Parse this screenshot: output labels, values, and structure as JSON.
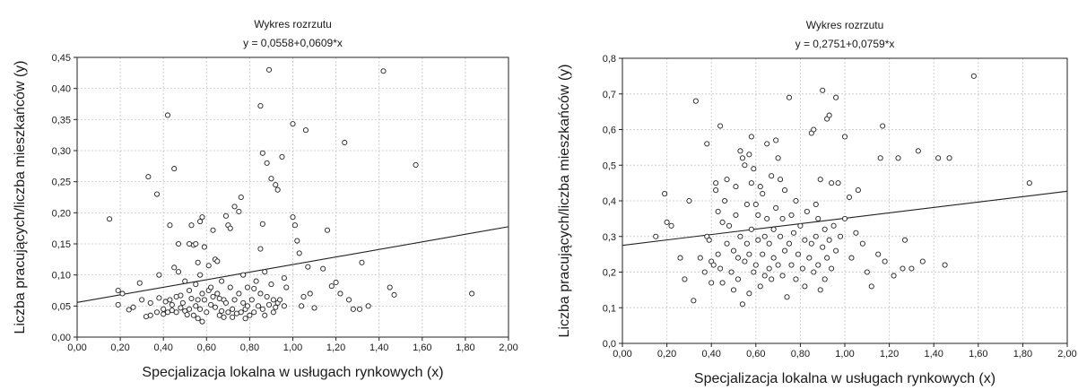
{
  "chart_data": [
    {
      "type": "scatter",
      "title": "Wykres rozrzutu",
      "subtitle": "y = 0,0558+0,0609*x",
      "xlabel": "Specjalizacja lokalna w usługach rynkowych (x)",
      "ylabel": "Liczba pracujących/liczba mieszkańców (y)",
      "xlim": [
        0,
        2
      ],
      "ylim": [
        0,
        0.45
      ],
      "x_ticks": [
        "0,00",
        "0,20",
        "0,40",
        "0,60",
        "0,80",
        "1,00",
        "1,20",
        "1,40",
        "1,60",
        "1,80",
        "2,00"
      ],
      "y_ticks": [
        "0,00",
        "0,05",
        "0,10",
        "0,15",
        "0,20",
        "0,25",
        "0,30",
        "0,35",
        "0,40",
        "0,45"
      ],
      "grid": true,
      "regression": {
        "intercept": 0.0558,
        "slope": 0.0609
      },
      "points": [
        [
          0.15,
          0.19
        ],
        [
          0.19,
          0.075
        ],
        [
          0.19,
          0.052
        ],
        [
          0.21,
          0.07
        ],
        [
          0.24,
          0.044
        ],
        [
          0.26,
          0.048
        ],
        [
          0.29,
          0.087
        ],
        [
          0.3,
          0.06
        ],
        [
          0.32,
          0.033
        ],
        [
          0.33,
          0.258
        ],
        [
          0.34,
          0.055
        ],
        [
          0.34,
          0.035
        ],
        [
          0.37,
          0.23
        ],
        [
          0.37,
          0.04
        ],
        [
          0.38,
          0.1
        ],
        [
          0.38,
          0.063
        ],
        [
          0.4,
          0.045
        ],
        [
          0.4,
          0.037
        ],
        [
          0.41,
          0.057
        ],
        [
          0.42,
          0.357
        ],
        [
          0.42,
          0.04
        ],
        [
          0.43,
          0.18
        ],
        [
          0.43,
          0.06
        ],
        [
          0.44,
          0.052
        ],
        [
          0.44,
          0.043
        ],
        [
          0.45,
          0.271
        ],
        [
          0.45,
          0.112
        ],
        [
          0.46,
          0.065
        ],
        [
          0.46,
          0.04
        ],
        [
          0.47,
          0.15
        ],
        [
          0.47,
          0.105
        ],
        [
          0.48,
          0.067
        ],
        [
          0.48,
          0.047
        ],
        [
          0.49,
          0.055
        ],
        [
          0.5,
          0.09
        ],
        [
          0.5,
          0.042
        ],
        [
          0.51,
          0.036
        ],
        [
          0.52,
          0.15
        ],
        [
          0.52,
          0.075
        ],
        [
          0.52,
          0.045
        ],
        [
          0.53,
          0.18
        ],
        [
          0.53,
          0.062
        ],
        [
          0.54,
          0.148
        ],
        [
          0.54,
          0.035
        ],
        [
          0.55,
          0.15
        ],
        [
          0.55,
          0.085
        ],
        [
          0.55,
          0.05
        ],
        [
          0.56,
          0.12
        ],
        [
          0.56,
          0.06
        ],
        [
          0.56,
          0.03
        ],
        [
          0.57,
          0.186
        ],
        [
          0.57,
          0.1
        ],
        [
          0.57,
          0.045
        ],
        [
          0.58,
          0.193
        ],
        [
          0.58,
          0.07
        ],
        [
          0.58,
          0.025
        ],
        [
          0.59,
          0.145
        ],
        [
          0.59,
          0.06
        ],
        [
          0.6,
          0.04
        ],
        [
          0.61,
          0.075
        ],
        [
          0.61,
          0.115
        ],
        [
          0.62,
          0.052
        ],
        [
          0.62,
          0.08
        ],
        [
          0.63,
          0.172
        ],
        [
          0.63,
          0.065
        ],
        [
          0.64,
          0.125
        ],
        [
          0.64,
          0.048
        ],
        [
          0.65,
          0.122
        ],
        [
          0.65,
          0.07
        ],
        [
          0.66,
          0.035
        ],
        [
          0.66,
          0.062
        ],
        [
          0.67,
          0.09
        ],
        [
          0.67,
          0.042
        ],
        [
          0.68,
          0.032
        ],
        [
          0.68,
          0.06
        ],
        [
          0.69,
          0.195
        ],
        [
          0.69,
          0.055
        ],
        [
          0.7,
          0.18
        ],
        [
          0.7,
          0.04
        ],
        [
          0.71,
          0.175
        ],
        [
          0.71,
          0.08
        ],
        [
          0.72,
          0.032
        ],
        [
          0.72,
          0.045
        ],
        [
          0.73,
          0.21
        ],
        [
          0.73,
          0.06
        ],
        [
          0.74,
          0.038
        ],
        [
          0.75,
          0.202
        ],
        [
          0.75,
          0.07
        ],
        [
          0.76,
          0.225
        ],
        [
          0.76,
          0.04
        ],
        [
          0.77,
          0.1
        ],
        [
          0.77,
          0.055
        ],
        [
          0.78,
          0.045
        ],
        [
          0.78,
          0.03
        ],
        [
          0.79,
          0.08
        ],
        [
          0.79,
          0.05
        ],
        [
          0.8,
          0.035
        ],
        [
          0.81,
          0.06
        ],
        [
          0.82,
          0.078
        ],
        [
          0.82,
          0.04
        ],
        [
          0.83,
          0.09
        ],
        [
          0.84,
          0.05
        ],
        [
          0.85,
          0.372
        ],
        [
          0.85,
          0.142
        ],
        [
          0.85,
          0.07
        ],
        [
          0.86,
          0.296
        ],
        [
          0.86,
          0.182
        ],
        [
          0.86,
          0.045
        ],
        [
          0.87,
          0.105
        ],
        [
          0.87,
          0.035
        ],
        [
          0.88,
          0.28
        ],
        [
          0.88,
          0.065
        ],
        [
          0.89,
          0.43
        ],
        [
          0.89,
          0.052
        ],
        [
          0.9,
          0.255
        ],
        [
          0.9,
          0.085
        ],
        [
          0.91,
          0.06
        ],
        [
          0.91,
          0.04
        ],
        [
          0.92,
          0.245
        ],
        [
          0.92,
          0.048
        ],
        [
          0.93,
          0.237
        ],
        [
          0.93,
          0.055
        ],
        [
          0.94,
          0.06
        ],
        [
          0.95,
          0.29
        ],
        [
          0.96,
          0.095
        ],
        [
          0.96,
          0.05
        ],
        [
          0.97,
          0.08
        ],
        [
          1.0,
          0.343
        ],
        [
          1.0,
          0.193
        ],
        [
          1.01,
          0.18
        ],
        [
          1.02,
          0.155
        ],
        [
          1.03,
          0.135
        ],
        [
          1.04,
          0.05
        ],
        [
          1.05,
          0.065
        ],
        [
          1.06,
          0.333
        ],
        [
          1.07,
          0.113
        ],
        [
          1.08,
          0.07
        ],
        [
          1.1,
          0.047
        ],
        [
          1.14,
          0.11
        ],
        [
          1.16,
          0.172
        ],
        [
          1.18,
          0.082
        ],
        [
          1.2,
          0.088
        ],
        [
          1.22,
          0.07
        ],
        [
          1.24,
          0.313
        ],
        [
          1.26,
          0.06
        ],
        [
          1.28,
          0.045
        ],
        [
          1.31,
          0.045
        ],
        [
          1.32,
          0.12
        ],
        [
          1.35,
          0.05
        ],
        [
          1.42,
          0.428
        ],
        [
          1.45,
          0.08
        ],
        [
          1.47,
          0.068
        ],
        [
          1.57,
          0.277
        ],
        [
          1.83,
          0.07
        ]
      ]
    },
    {
      "type": "scatter",
      "title": "Wykres rozrzutu",
      "subtitle": "y = 0,2751+0,0759*x",
      "xlabel": "Specjalizacja lokalna w usługach rynkowych (x)",
      "ylabel": "Liczba pracujących/liczba mieszkańców (y)",
      "xlim": [
        0,
        2
      ],
      "ylim": [
        0,
        0.8
      ],
      "x_ticks": [
        "0,00",
        "0,20",
        "0,40",
        "0,60",
        "0,80",
        "1,00",
        "1,20",
        "1,40",
        "1,60",
        "1,80",
        "2,00"
      ],
      "y_ticks": [
        "0,0",
        "0,1",
        "0,2",
        "0,3",
        "0,4",
        "0,5",
        "0,6",
        "0,7",
        "0,8"
      ],
      "grid": true,
      "regression": {
        "intercept": 0.2751,
        "slope": 0.0759
      },
      "points": [
        [
          0.15,
          0.3
        ],
        [
          0.19,
          0.42
        ],
        [
          0.2,
          0.34
        ],
        [
          0.22,
          0.33
        ],
        [
          0.26,
          0.24
        ],
        [
          0.28,
          0.18
        ],
        [
          0.3,
          0.4
        ],
        [
          0.32,
          0.12
        ],
        [
          0.33,
          0.68
        ],
        [
          0.35,
          0.24
        ],
        [
          0.37,
          0.2
        ],
        [
          0.38,
          0.56
        ],
        [
          0.38,
          0.3
        ],
        [
          0.39,
          0.29
        ],
        [
          0.4,
          0.17
        ],
        [
          0.4,
          0.23
        ],
        [
          0.41,
          0.22
        ],
        [
          0.42,
          0.43
        ],
        [
          0.42,
          0.45
        ],
        [
          0.43,
          0.37
        ],
        [
          0.43,
          0.25
        ],
        [
          0.44,
          0.61
        ],
        [
          0.44,
          0.21
        ],
        [
          0.45,
          0.34
        ],
        [
          0.45,
          0.17
        ],
        [
          0.46,
          0.4
        ],
        [
          0.47,
          0.46
        ],
        [
          0.47,
          0.28
        ],
        [
          0.48,
          0.33
        ],
        [
          0.49,
          0.2
        ],
        [
          0.5,
          0.26
        ],
        [
          0.5,
          0.15
        ],
        [
          0.51,
          0.36
        ],
        [
          0.51,
          0.44
        ],
        [
          0.52,
          0.18
        ],
        [
          0.52,
          0.24
        ],
        [
          0.53,
          0.54
        ],
        [
          0.53,
          0.3
        ],
        [
          0.54,
          0.52
        ],
        [
          0.54,
          0.11
        ],
        [
          0.55,
          0.5
        ],
        [
          0.55,
          0.23
        ],
        [
          0.56,
          0.39
        ],
        [
          0.56,
          0.28
        ],
        [
          0.57,
          0.53
        ],
        [
          0.57,
          0.25
        ],
        [
          0.57,
          0.14
        ],
        [
          0.58,
          0.45
        ],
        [
          0.58,
          0.58
        ],
        [
          0.58,
          0.32
        ],
        [
          0.59,
          0.49
        ],
        [
          0.59,
          0.2
        ],
        [
          0.6,
          0.39
        ],
        [
          0.6,
          0.22
        ],
        [
          0.61,
          0.36
        ],
        [
          0.61,
          0.29
        ],
        [
          0.62,
          0.16
        ],
        [
          0.62,
          0.44
        ],
        [
          0.63,
          0.42
        ],
        [
          0.63,
          0.25
        ],
        [
          0.64,
          0.3
        ],
        [
          0.64,
          0.19
        ],
        [
          0.65,
          0.56
        ],
        [
          0.65,
          0.35
        ],
        [
          0.66,
          0.21
        ],
        [
          0.66,
          0.28
        ],
        [
          0.67,
          0.47
        ],
        [
          0.67,
          0.18
        ],
        [
          0.68,
          0.32
        ],
        [
          0.68,
          0.24
        ],
        [
          0.69,
          0.57
        ],
        [
          0.69,
          0.38
        ],
        [
          0.7,
          0.52
        ],
        [
          0.7,
          0.22
        ],
        [
          0.71,
          0.46
        ],
        [
          0.71,
          0.3
        ],
        [
          0.72,
          0.19
        ],
        [
          0.72,
          0.35
        ],
        [
          0.73,
          0.43
        ],
        [
          0.73,
          0.26
        ],
        [
          0.74,
          0.13
        ],
        [
          0.75,
          0.69
        ],
        [
          0.75,
          0.28
        ],
        [
          0.76,
          0.36
        ],
        [
          0.76,
          0.22
        ],
        [
          0.77,
          0.31
        ],
        [
          0.78,
          0.18
        ],
        [
          0.78,
          0.4
        ],
        [
          0.79,
          0.25
        ],
        [
          0.8,
          0.33
        ],
        [
          0.81,
          0.21
        ],
        [
          0.82,
          0.29
        ],
        [
          0.82,
          0.16
        ],
        [
          0.83,
          0.37
        ],
        [
          0.84,
          0.24
        ],
        [
          0.85,
          0.59
        ],
        [
          0.85,
          0.28
        ],
        [
          0.86,
          0.6
        ],
        [
          0.86,
          0.2
        ],
        [
          0.87,
          0.39
        ],
        [
          0.87,
          0.3
        ],
        [
          0.88,
          0.22
        ],
        [
          0.88,
          0.35
        ],
        [
          0.89,
          0.46
        ],
        [
          0.89,
          0.15
        ],
        [
          0.9,
          0.71
        ],
        [
          0.9,
          0.27
        ],
        [
          0.91,
          0.32
        ],
        [
          0.91,
          0.18
        ],
        [
          0.92,
          0.63
        ],
        [
          0.92,
          0.24
        ],
        [
          0.93,
          0.64
        ],
        [
          0.93,
          0.29
        ],
        [
          0.94,
          0.45
        ],
        [
          0.94,
          0.21
        ],
        [
          0.95,
          0.33
        ],
        [
          0.96,
          0.69
        ],
        [
          0.96,
          0.26
        ],
        [
          0.97,
          0.45
        ],
        [
          0.98,
          0.3
        ],
        [
          1.0,
          0.58
        ],
        [
          1.0,
          0.35
        ],
        [
          1.02,
          0.41
        ],
        [
          1.03,
          0.24
        ],
        [
          1.05,
          0.31
        ],
        [
          1.06,
          0.43
        ],
        [
          1.08,
          0.28
        ],
        [
          1.1,
          0.2
        ],
        [
          1.12,
          0.16
        ],
        [
          1.15,
          0.25
        ],
        [
          1.16,
          0.52
        ],
        [
          1.17,
          0.61
        ],
        [
          1.18,
          0.23
        ],
        [
          1.22,
          0.19
        ],
        [
          1.24,
          0.52
        ],
        [
          1.26,
          0.21
        ],
        [
          1.27,
          0.29
        ],
        [
          1.3,
          0.21
        ],
        [
          1.33,
          0.54
        ],
        [
          1.35,
          0.23
        ],
        [
          1.42,
          0.52
        ],
        [
          1.45,
          0.22
        ],
        [
          1.47,
          0.52
        ],
        [
          1.58,
          0.75
        ],
        [
          1.83,
          0.45
        ]
      ]
    }
  ]
}
